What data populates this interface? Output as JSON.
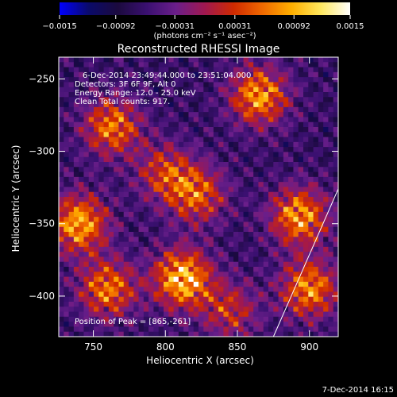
{
  "chart_data": {
    "type": "heatmap",
    "title": "Reconstructed RHESSI Image",
    "xlabel": "Heliocentric X (arcsec)",
    "ylabel": "Heliocentric Y (arcsec)",
    "xlim": [
      726,
      920
    ],
    "ylim": [
      -428,
      -235
    ],
    "x_ticks": [
      750,
      800,
      850,
      900
    ],
    "y_ticks": [
      -250,
      -300,
      -350,
      -400
    ],
    "colorbar": {
      "min": -0.0015,
      "max": 0.0015,
      "tick_values": [
        -0.0015,
        -0.00092,
        -0.00031,
        0.00031,
        0.00092,
        0.0015
      ],
      "tick_labels": [
        "−0.0015",
        "−0.00092",
        "−0.00031",
        "0.00031",
        "0.00092",
        "0.0015"
      ],
      "units": "(photons cm⁻² s⁻¹ asec⁻²)"
    },
    "annotations": [
      "6-Dec-2014 23:49:44.000 to 23:51:04.000",
      "Detectors: 3F 6F 9F, Alt 0",
      "Energy Range: 12.0 - 25.0 keV",
      "Clean    Total counts: 917."
    ],
    "peak_label": "Position of Peak = [865,-261]",
    "peak_position": [
      865,
      -261
    ],
    "bright_regions": [
      {
        "x": 812,
        "y": -388,
        "intensity": 1.0
      },
      {
        "x": 740,
        "y": -350,
        "intensity": 0.9
      },
      {
        "x": 760,
        "y": -395,
        "intensity": 0.75
      },
      {
        "x": 893,
        "y": -345,
        "intensity": 0.85
      },
      {
        "x": 900,
        "y": -395,
        "intensity": 0.8
      },
      {
        "x": 822,
        "y": -330,
        "intensity": 0.65
      },
      {
        "x": 800,
        "y": -315,
        "intensity": 0.55
      },
      {
        "x": 865,
        "y": -262,
        "intensity": 0.85
      },
      {
        "x": 763,
        "y": -283,
        "intensity": 0.75
      },
      {
        "x": 845,
        "y": -410,
        "intensity": 0.5
      }
    ],
    "limb": {
      "x": [
        875,
        920
      ],
      "y": [
        -428,
        -326
      ]
    },
    "colormap": [
      "#0000ff",
      "#0a0a6a",
      "#1b0a3e",
      "#3a1070",
      "#6a1e8a",
      "#a01850",
      "#d02a00",
      "#f06a00",
      "#ffb000",
      "#ffe860",
      "#ffffff"
    ]
  },
  "footer": {
    "timestamp": "7-Dec-2014 16:15"
  }
}
